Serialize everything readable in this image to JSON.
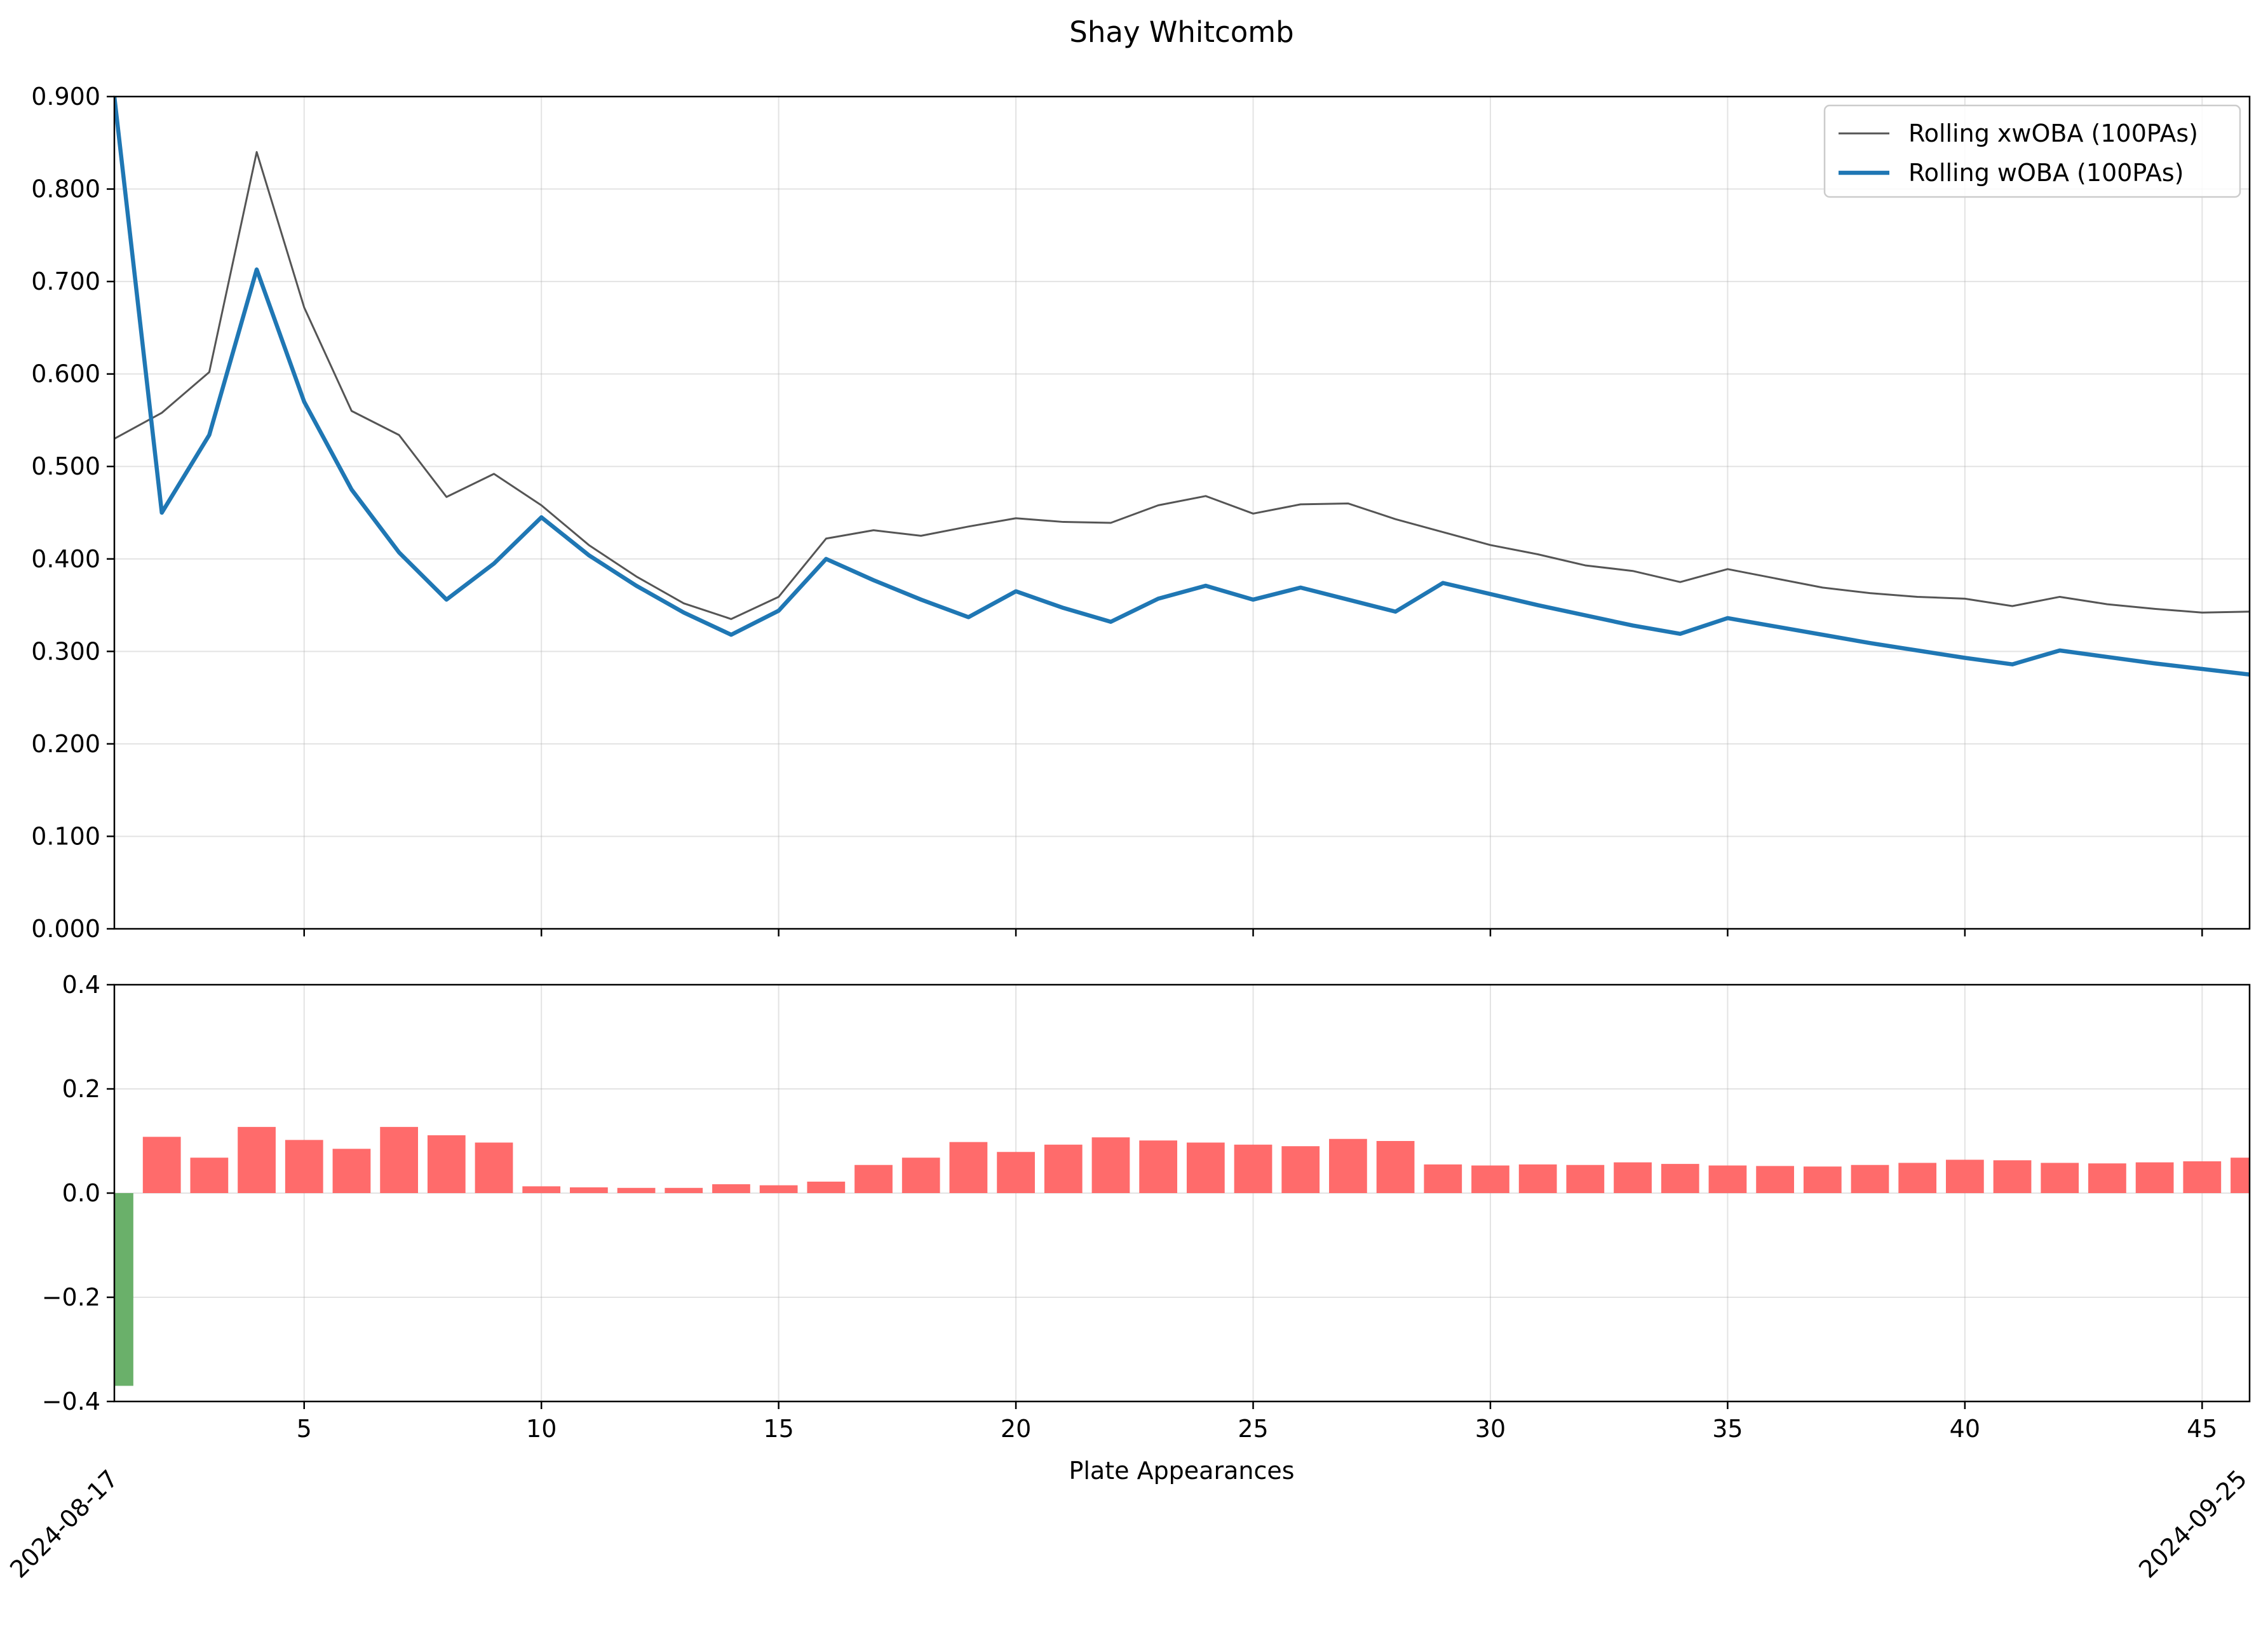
{
  "chart_data": {
    "title": "Shay Whitcomb",
    "xlabel": "Plate Appearances",
    "date_labels": [
      "2024-08-17",
      "2024-09-25"
    ],
    "x_ticks": [
      5,
      10,
      15,
      20,
      25,
      30,
      35,
      40,
      45
    ],
    "x_tick_labels": [
      "5",
      "10",
      "15",
      "20",
      "25",
      "30",
      "35",
      "40",
      "45"
    ],
    "xlim": [
      1,
      46
    ],
    "grid": true,
    "legend_position": "top-right",
    "colors": {
      "xwoba": "#555555",
      "woba": "#1f77b4",
      "bar_positive": "#ff6b6b",
      "bar_negative": "#6ab06a"
    },
    "charts": [
      {
        "type": "line",
        "ylim": [
          0,
          0.9
        ],
        "y_ticks": [
          0,
          0.1,
          0.2,
          0.3,
          0.4,
          0.5,
          0.6,
          0.7,
          0.8,
          0.9
        ],
        "y_tick_labels": [
          "0.000",
          "0.100",
          "0.200",
          "0.300",
          "0.400",
          "0.500",
          "0.600",
          "0.700",
          "0.800",
          "0.900"
        ],
        "x": [
          1,
          2,
          3,
          4,
          5,
          6,
          7,
          8,
          9,
          10,
          11,
          12,
          13,
          14,
          15,
          16,
          17,
          18,
          19,
          20,
          21,
          22,
          23,
          24,
          25,
          26,
          27,
          28,
          29,
          30,
          31,
          32,
          33,
          34,
          35,
          36,
          37,
          38,
          39,
          40,
          41,
          42,
          43,
          44,
          45,
          46
        ],
        "series": [
          {
            "name": "Rolling xwOBA (100PAs)",
            "values": [
              0.53,
              0.558,
              0.602,
              0.84,
              0.672,
              0.56,
              0.534,
              0.467,
              0.492,
              0.458,
              0.415,
              0.381,
              0.352,
              0.335,
              0.359,
              0.422,
              0.431,
              0.425,
              0.435,
              0.444,
              0.44,
              0.439,
              0.458,
              0.468,
              0.449,
              0.459,
              0.46,
              0.443,
              0.429,
              0.415,
              0.405,
              0.393,
              0.387,
              0.375,
              0.389,
              0.379,
              0.369,
              0.363,
              0.359,
              0.357,
              0.349,
              0.359,
              0.351,
              0.346,
              0.342,
              0.343
            ]
          },
          {
            "name": "Rolling wOBA (100PAs)",
            "values": [
              0.9,
              0.45,
              0.534,
              0.713,
              0.57,
              0.475,
              0.407,
              0.356,
              0.395,
              0.445,
              0.404,
              0.371,
              0.342,
              0.318,
              0.344,
              0.4,
              0.377,
              0.356,
              0.337,
              0.365,
              0.347,
              0.332,
              0.357,
              0.371,
              0.356,
              0.369,
              0.356,
              0.343,
              0.374,
              0.362,
              0.35,
              0.339,
              0.328,
              0.319,
              0.336,
              0.327,
              0.318,
              0.309,
              0.301,
              0.293,
              0.286,
              0.301,
              0.294,
              0.287,
              0.281,
              0.275
            ]
          }
        ]
      },
      {
        "type": "bar",
        "ylim": [
          -0.4,
          0.4
        ],
        "y_ticks": [
          -0.4,
          -0.2,
          0,
          0.2,
          0.4
        ],
        "y_tick_labels": [
          "−0.4",
          "−0.2",
          "0.0",
          "0.2",
          "0.4"
        ],
        "x": [
          1,
          2,
          3,
          4,
          5,
          6,
          7,
          8,
          9,
          10,
          11,
          12,
          13,
          14,
          15,
          16,
          17,
          18,
          19,
          20,
          21,
          22,
          23,
          24,
          25,
          26,
          27,
          28,
          29,
          30,
          31,
          32,
          33,
          34,
          35,
          36,
          37,
          38,
          39,
          40,
          41,
          42,
          43,
          44,
          45,
          46
        ],
        "values": [
          -0.37,
          0.108,
          0.068,
          0.127,
          0.102,
          0.085,
          0.127,
          0.111,
          0.097,
          0.013,
          0.011,
          0.01,
          0.01,
          0.017,
          0.015,
          0.022,
          0.054,
          0.068,
          0.098,
          0.079,
          0.093,
          0.107,
          0.101,
          0.097,
          0.093,
          0.09,
          0.104,
          0.1,
          0.055,
          0.053,
          0.055,
          0.054,
          0.059,
          0.056,
          0.053,
          0.052,
          0.051,
          0.054,
          0.058,
          0.064,
          0.063,
          0.058,
          0.057,
          0.059,
          0.061,
          0.068
        ]
      }
    ]
  }
}
